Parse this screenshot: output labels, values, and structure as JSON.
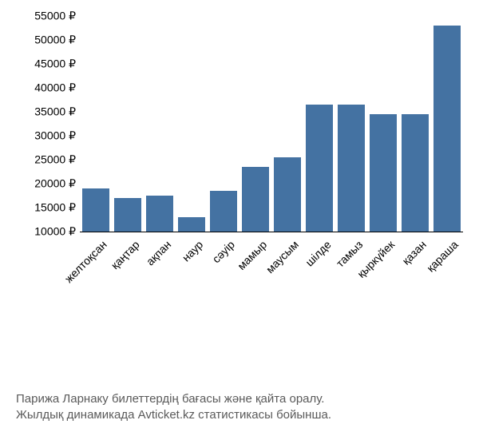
{
  "chart": {
    "type": "bar",
    "ymin": 10000,
    "ymax": 55000,
    "ytick_step": 5000,
    "currency_suffix": " ₽",
    "bar_color": "#4472a2",
    "background_color": "#ffffff",
    "axis_color": "#000000",
    "label_fontsize": 14,
    "bar_gap_ratio": 0.15,
    "categories": [
      "желтоқсан",
      "қаңтар",
      "ақпан",
      "наур",
      "сәуір",
      "мамыр",
      "маусым",
      "шілде",
      "тамыз",
      "қыркүйек",
      "қазан",
      "қараша"
    ],
    "values": [
      19000,
      17000,
      17500,
      13000,
      18500,
      23500,
      25500,
      36500,
      36500,
      34500,
      34500,
      53000
    ]
  },
  "caption": {
    "line1": "Парижа Ларнаку билеттердің бағасы және қайта оралу.",
    "line2": "Жылдық динамикада Avticket.kz статистикасы бойынша."
  }
}
